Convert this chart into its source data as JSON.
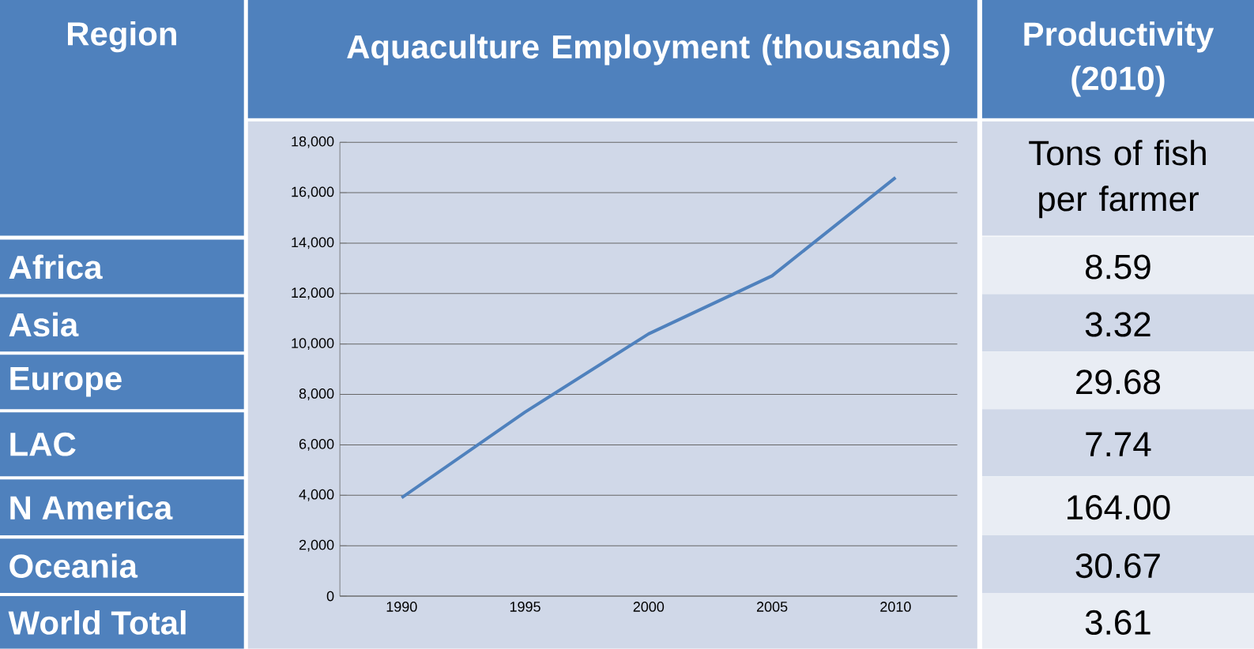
{
  "chart_data": [
    {
      "type": "other",
      "title": "Region",
      "annotations": [
        "Africa",
        "Asia",
        "Europe",
        "LAC",
        "N America",
        "Oceania",
        "World Total"
      ]
    },
    {
      "type": "line",
      "title": "Aquaculture Employment (thousands)",
      "categories": [
        "1990",
        "1995",
        "2000",
        "2005",
        "2010"
      ],
      "values": [
        3900,
        7300,
        10400,
        12700,
        16600
      ],
      "color": "#4f81bd",
      "ylim": [
        0,
        18000
      ],
      "yticks": [
        0,
        {
          "value": 2000,
          "label": "2,000"
        },
        {
          "value": 4000,
          "label": "4,000"
        },
        {
          "value": 6000,
          "label": "6,000"
        },
        {
          "value": 8000,
          "label": "8,000"
        },
        {
          "value": 10000,
          "label": "10,000"
        },
        {
          "value": 12000,
          "label": "12,000"
        },
        {
          "value": 14000,
          "label": "14,000"
        },
        {
          "value": 16000,
          "label": "16,000"
        },
        {
          "value": 18000,
          "label": "18,000"
        }
      ],
      "grid": "y"
    },
    {
      "type": "other",
      "title": "Productivity (2010)",
      "subtitle": "Tons of fish per farmer",
      "annotations": [
        "8.59",
        "3.32",
        "29.68",
        "7.74",
        "164.00",
        "30.67",
        "3.61"
      ]
    }
  ]
}
